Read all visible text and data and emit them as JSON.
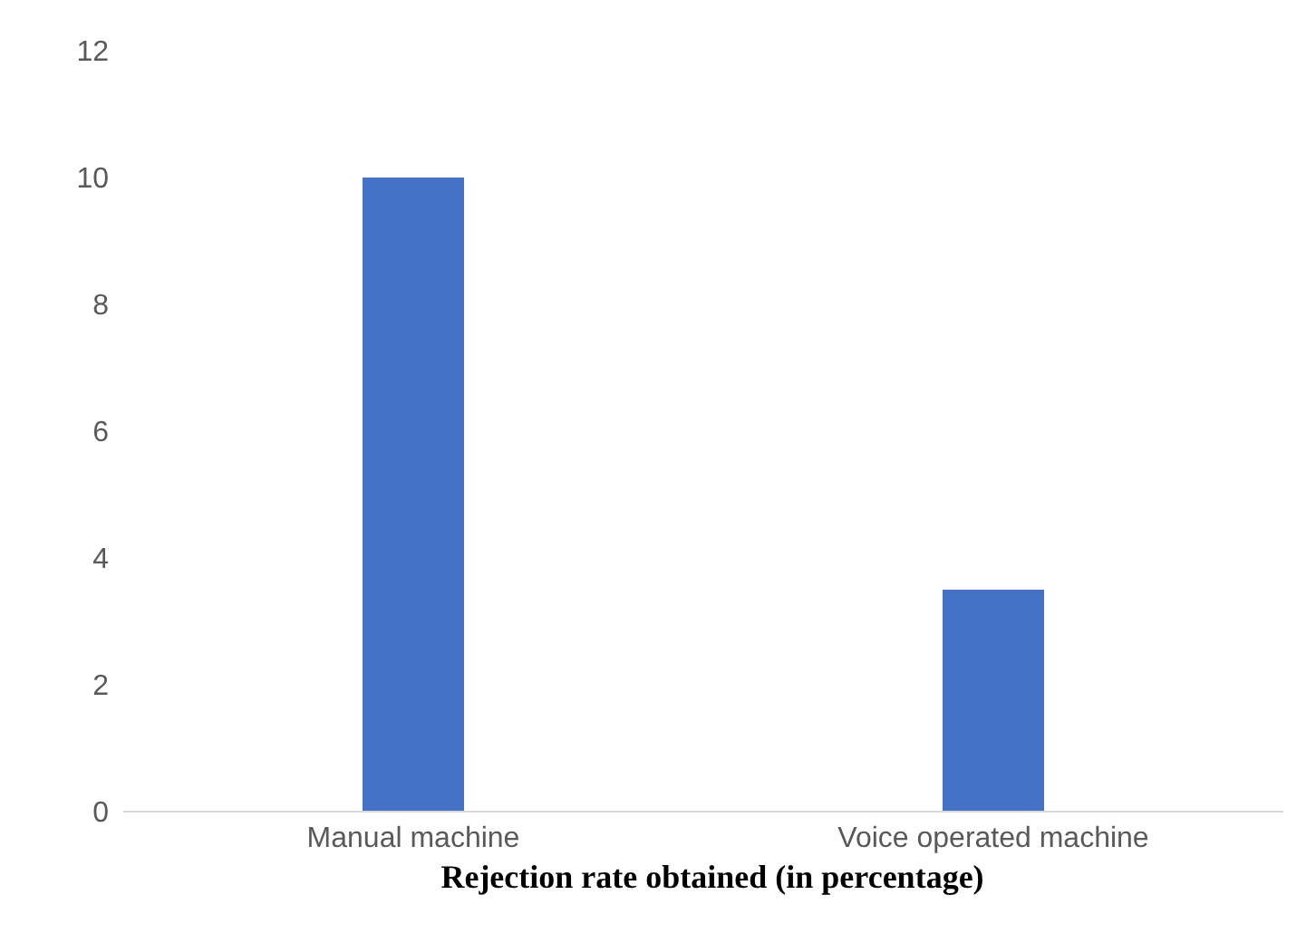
{
  "chart_data": {
    "type": "bar",
    "title": "Rejection rate obtained (in percentage)",
    "categories": [
      "Manual machine",
      "Voice operated machine"
    ],
    "values": [
      10,
      3.5
    ],
    "color": "#4472c4",
    "ylim": [
      0,
      12
    ],
    "yticks": [
      0,
      2,
      4,
      6,
      8,
      10,
      12
    ],
    "grid": false
  }
}
